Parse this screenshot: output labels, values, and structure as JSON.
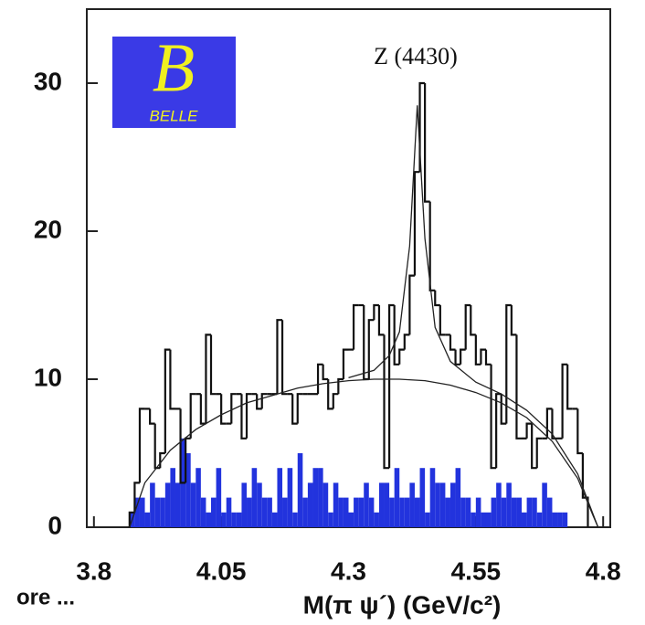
{
  "chart_data": {
    "type": "histogram",
    "annotation": "Z (4430)",
    "logo_letter": "B",
    "logo_text": "BELLE",
    "corner_text": "ore ...",
    "x_label": "M(π ψ´)  (GeV/c²)",
    "xlim": [
      3.786,
      4.814
    ],
    "ylim": [
      0,
      35
    ],
    "xticks": [
      3.8,
      4.05,
      4.3,
      4.55,
      4.8
    ],
    "yticks": [
      0,
      10,
      20,
      30
    ],
    "bins": [
      3.87,
      3.88,
      3.89,
      3.9,
      3.91,
      3.92,
      3.93,
      3.94,
      3.95,
      3.96,
      3.97,
      3.98,
      3.99,
      4.0,
      4.01,
      4.02,
      4.03,
      4.04,
      4.05,
      4.06,
      4.07,
      4.08,
      4.09,
      4.1,
      4.11,
      4.12,
      4.13,
      4.14,
      4.15,
      4.16,
      4.17,
      4.18,
      4.19,
      4.2,
      4.21,
      4.22,
      4.23,
      4.24,
      4.25,
      4.26,
      4.27,
      4.28,
      4.29,
      4.3,
      4.31,
      4.32,
      4.33,
      4.34,
      4.35,
      4.36,
      4.37,
      4.38,
      4.39,
      4.4,
      4.41,
      4.42,
      4.43,
      4.44,
      4.45,
      4.46,
      4.47,
      4.48,
      4.49,
      4.5,
      4.51,
      4.52,
      4.53,
      4.54,
      4.55,
      4.56,
      4.57,
      4.58,
      4.59,
      4.6,
      4.61,
      4.62,
      4.63,
      4.64,
      4.65,
      4.66,
      4.67,
      4.68,
      4.69,
      4.7,
      4.71,
      4.72,
      4.73,
      4.74,
      4.75,
      4.76,
      4.77
    ],
    "series": [
      {
        "color": "#111111",
        "style": "step",
        "values": [
          1,
          3,
          8,
          8,
          7,
          4,
          5,
          12,
          8,
          8,
          3,
          6,
          9,
          9,
          7,
          13,
          9,
          9,
          7,
          7,
          9,
          9,
          6,
          9,
          9,
          8,
          9,
          9,
          9,
          14,
          9,
          9,
          7,
          9,
          9,
          9,
          9,
          11,
          10,
          8,
          9,
          10,
          12,
          12,
          15,
          15,
          10,
          14,
          15,
          13,
          4,
          15,
          11,
          12,
          13,
          17,
          24,
          30,
          22,
          16,
          15,
          13,
          13,
          12,
          11,
          12,
          15,
          13,
          11,
          12,
          11,
          4,
          9,
          7,
          15,
          13,
          6,
          6,
          7,
          4,
          6,
          6,
          8,
          6,
          6,
          11,
          8,
          8,
          5,
          2
        ]
      },
      {
        "color": "#2233dd",
        "style": "filled",
        "values": [
          1,
          2,
          2,
          1,
          3,
          2,
          2,
          3,
          4,
          3,
          6,
          5,
          3,
          4,
          2,
          1,
          2,
          4,
          1,
          2,
          1,
          1,
          3,
          2,
          4,
          3,
          2,
          2,
          1,
          4,
          2,
          4,
          1,
          5,
          2,
          3,
          4,
          4,
          3,
          1,
          3,
          2,
          2,
          1,
          2,
          2,
          3,
          2,
          1,
          3,
          3,
          2,
          4,
          2,
          2,
          3,
          2,
          4,
          1,
          4,
          3,
          3,
          2,
          3,
          4,
          2,
          2,
          1,
          2,
          1,
          1,
          2,
          3,
          2,
          3,
          2,
          2,
          1,
          2,
          2,
          1,
          3,
          2,
          1,
          1,
          1,
          0,
          0,
          0,
          0
        ]
      }
    ],
    "curves": [
      {
        "color": "#222222",
        "x": [
          3.87,
          3.9,
          3.95,
          4.0,
          4.05,
          4.1,
          4.15,
          4.2,
          4.25,
          4.3,
          4.35,
          4.4,
          4.45,
          4.5,
          4.55,
          4.6,
          4.65,
          4.7,
          4.75,
          4.78,
          4.79
        ],
        "y": [
          0,
          3,
          5.2,
          6.6,
          7.6,
          8.4,
          8.9,
          9.4,
          9.7,
          9.9,
          10,
          10,
          9.9,
          9.6,
          9.1,
          8.4,
          7.4,
          5.8,
          3.3,
          0.8,
          0
        ]
      },
      {
        "color": "#222222",
        "x": [
          4.3,
          4.35,
          4.38,
          4.4,
          4.42,
          4.435,
          4.45,
          4.47,
          4.5,
          4.55,
          4.6,
          4.65,
          4.7,
          4.75,
          4.78,
          4.79
        ],
        "y": [
          10.1,
          10.6,
          11.6,
          13.2,
          19,
          28.5,
          19.5,
          13.5,
          11.2,
          9.8,
          9,
          7.9,
          6.3,
          3.6,
          0.9,
          0
        ]
      }
    ]
  }
}
